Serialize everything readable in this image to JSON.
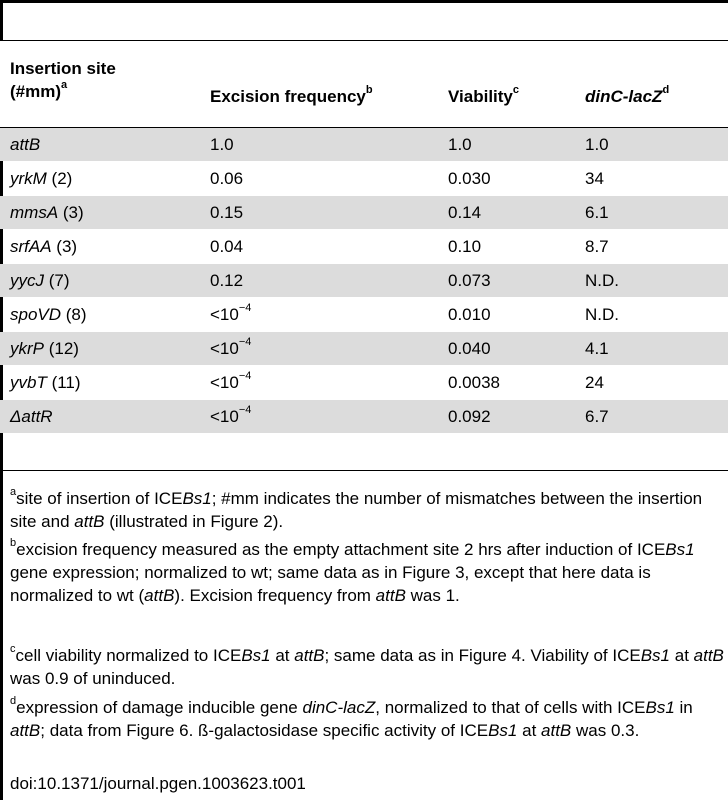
{
  "table": {
    "headers": {
      "insertion_line1": "Insertion site",
      "insertion_line2": "(#mm)",
      "insertion_sup": "a",
      "excision": "Excision frequency",
      "excision_sup": "b",
      "viability": "Viability",
      "viability_sup": "c",
      "dinc": "dinC-lacZ",
      "dinc_sup": "d"
    },
    "rows": [
      {
        "site": "attB",
        "mm": "",
        "excision": "1.0",
        "exc_exp": "",
        "viability": "1.0",
        "dinc": "1.0"
      },
      {
        "site": "yrkM",
        "mm": " (2)",
        "excision": "0.06",
        "exc_exp": "",
        "viability": "0.030",
        "dinc": "34"
      },
      {
        "site": "mmsA",
        "mm": " (3)",
        "excision": "0.15",
        "exc_exp": "",
        "viability": "0.14",
        "dinc": "6.1"
      },
      {
        "site": "srfAA",
        "mm": " (3)",
        "excision": "0.04",
        "exc_exp": "",
        "viability": "0.10",
        "dinc": "8.7"
      },
      {
        "site": "yycJ",
        "mm": " (7)",
        "excision": "0.12",
        "exc_exp": "",
        "viability": "0.073",
        "dinc": "N.D."
      },
      {
        "site": "spoVD",
        "mm": " (8)",
        "excision": "<10",
        "exc_exp": "−4",
        "viability": "0.010",
        "dinc": "N.D."
      },
      {
        "site": "ykrP",
        "mm": " (12)",
        "excision": "<10",
        "exc_exp": "−4",
        "viability": "0.040",
        "dinc": "4.1"
      },
      {
        "site": "yvbT",
        "mm": " (11)",
        "excision": "<10",
        "exc_exp": "−4",
        "viability": "0.0038",
        "dinc": "24"
      },
      {
        "site": "ΔattR",
        "mm": "",
        "excision": "<10",
        "exc_exp": "−4",
        "viability": "0.092",
        "dinc": "6.7"
      }
    ]
  },
  "footnotes": {
    "a_mark": "a",
    "a_t1": "site of insertion of ICE",
    "a_t2": "Bs1",
    "a_t3": "; #mm indicates the number of mismatches between the insertion site and ",
    "a_t4": "attB",
    "a_t5": " (illustrated in Figure 2).",
    "b_mark": "b",
    "b_t1": "excision frequency measured as the empty attachment site 2 hrs after induction of ICE",
    "b_t2": "Bs1",
    "b_t3": " gene expression; normalized to wt; same data as in Figure 3, except that here data is normalized to wt (",
    "b_t4": "attB",
    "b_t5": "). Excision frequency from ",
    "b_t6": "attB",
    "b_t7": " was 1.",
    "c_mark": "c",
    "c_t1": "cell viability normalized to ICE",
    "c_t2": "Bs1",
    "c_t3": " at ",
    "c_t4": "attB",
    "c_t5": "; same data as in Figure 4. Viability of ICE",
    "c_t6": "Bs1",
    "c_t7": " at ",
    "c_t8": "attB",
    "c_t9": " was 0.9 of uninduced.",
    "d_mark": "d",
    "d_t1": "expression of damage inducible gene ",
    "d_t2": "dinC-lacZ",
    "d_t3": ", normalized to that of cells with ICE",
    "d_t4": "Bs1",
    "d_t5": " in ",
    "d_t6": "attB",
    "d_t7": "; data from Figure 6. ß-galactosidase specific activity of ICE",
    "d_t8": "Bs1",
    "d_t9": " at ",
    "d_t10": "attB",
    "d_t11": " was 0.3."
  },
  "doi": "doi:10.1371/journal.pgen.1003623.t001"
}
